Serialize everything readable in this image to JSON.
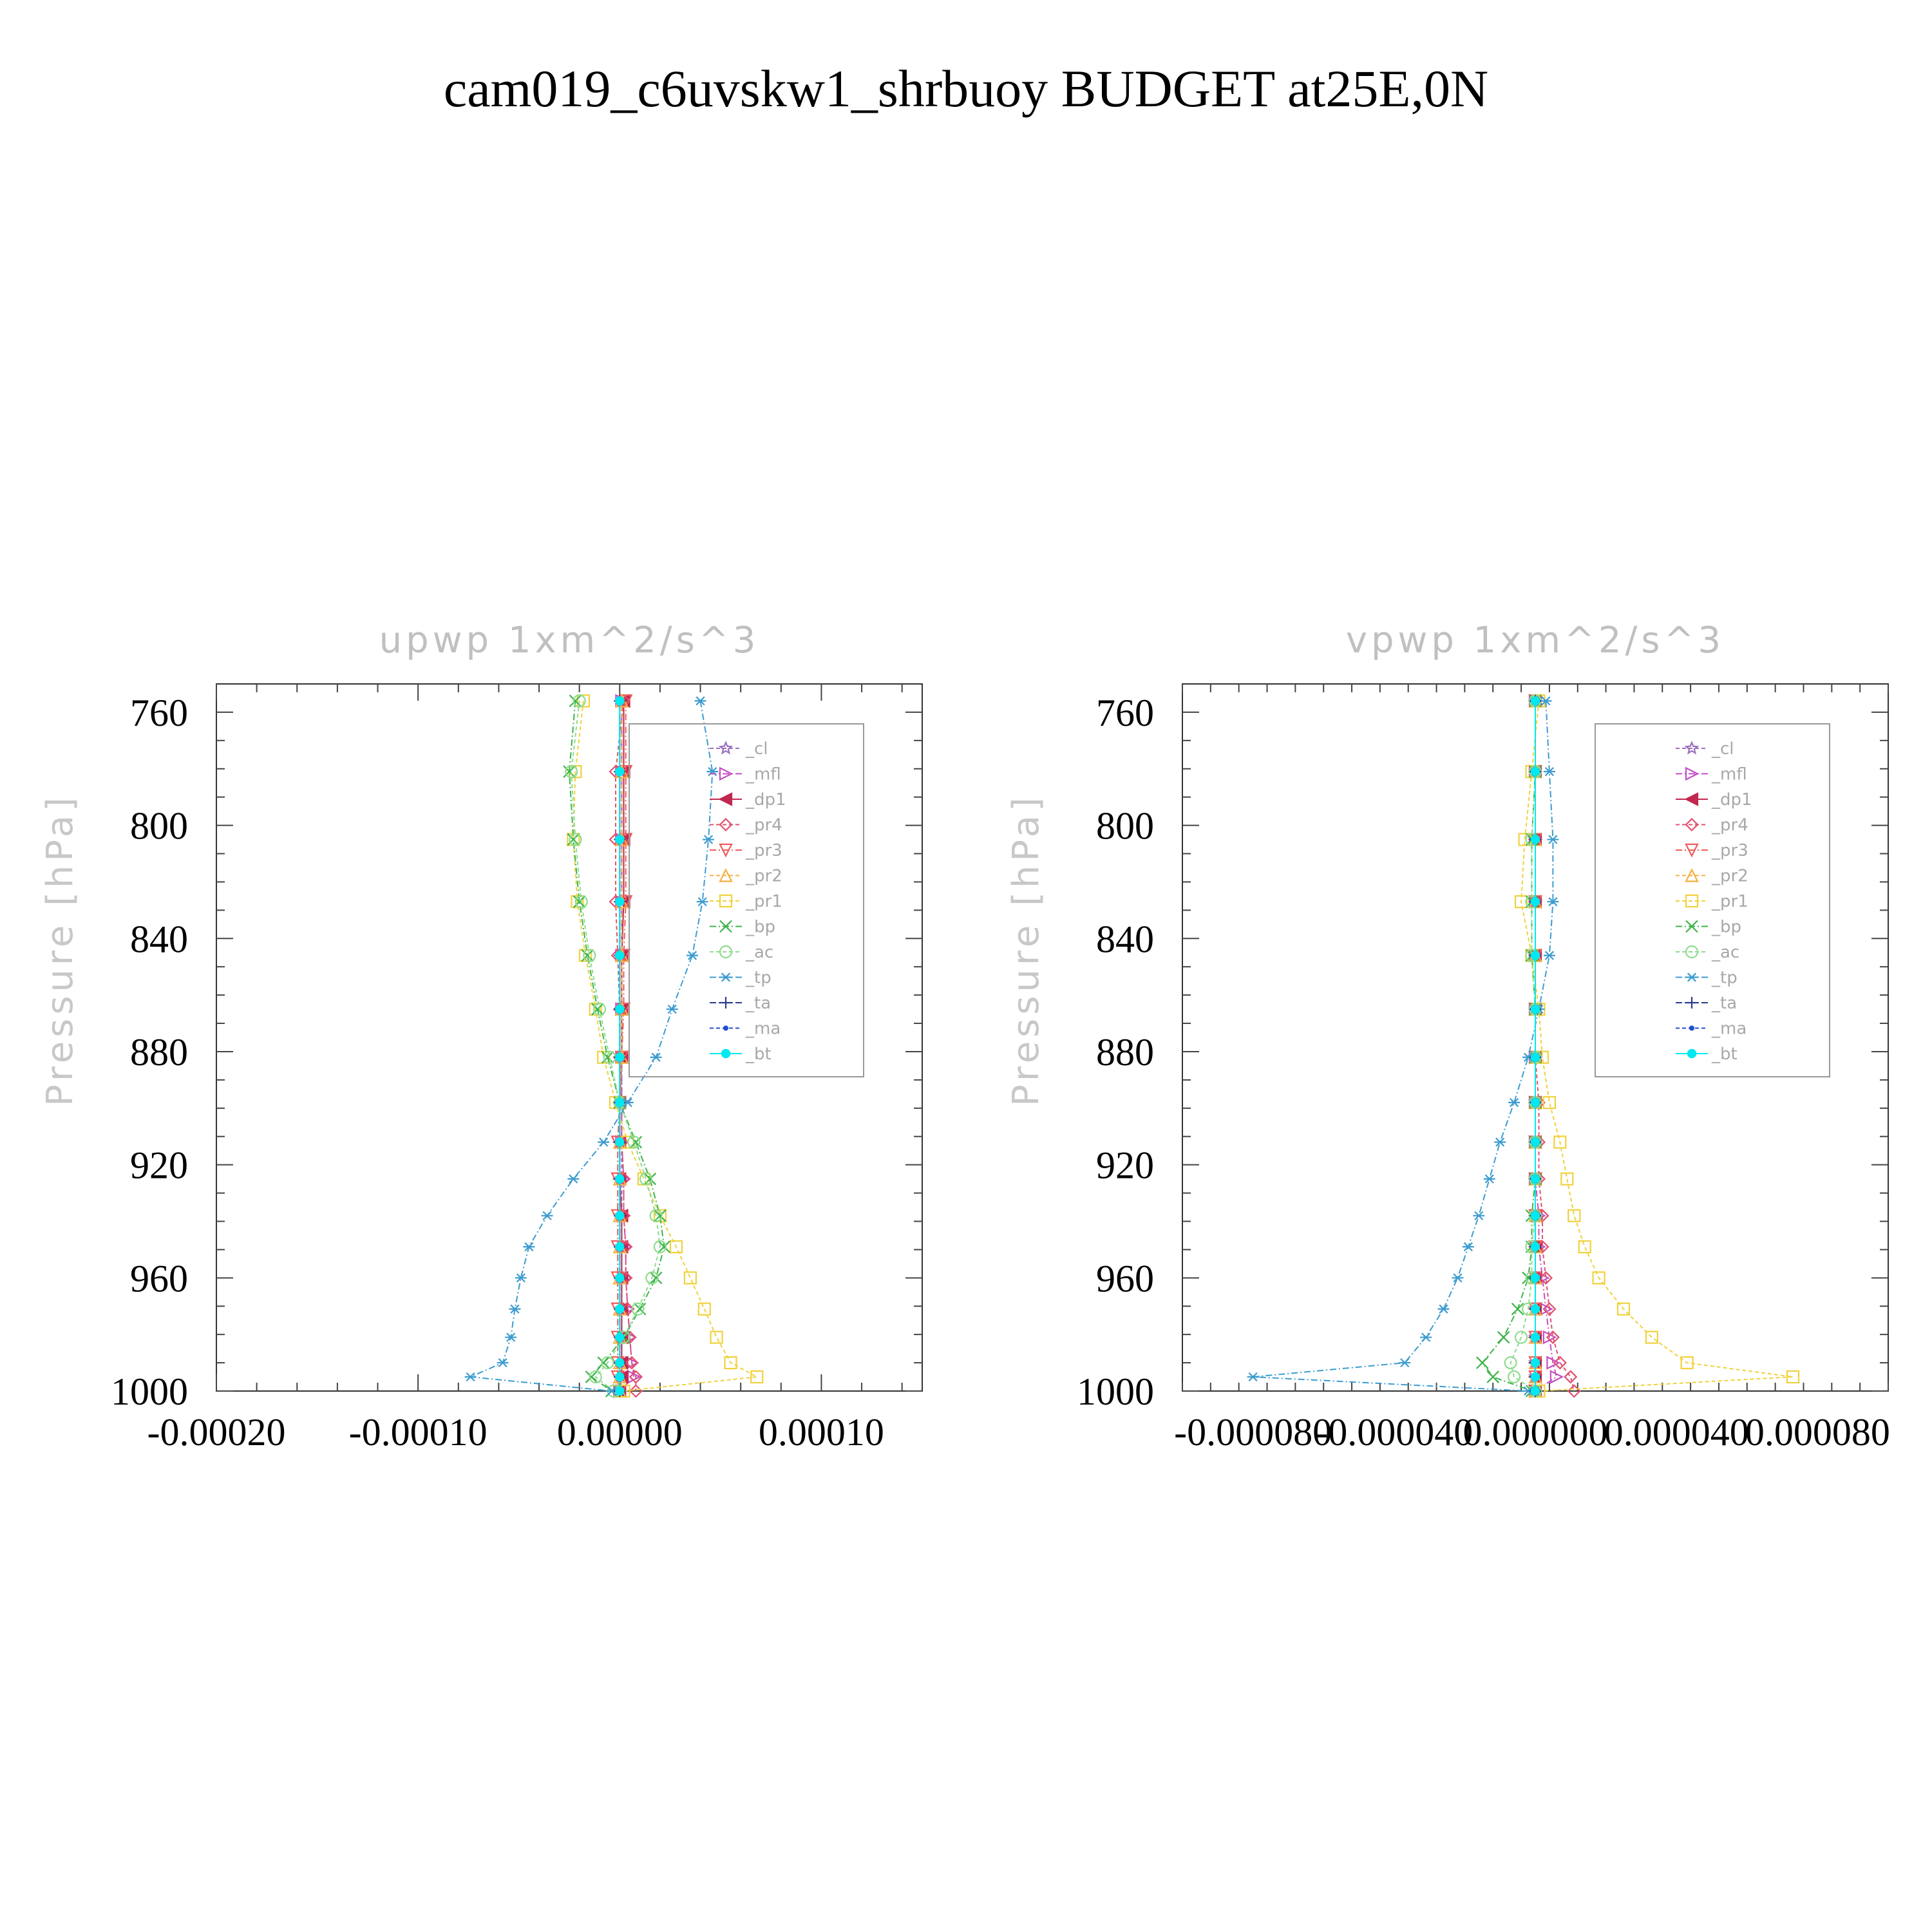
{
  "figure_title": "cam019_c6uvskw1_shrbuoy  BUDGET at25E,0N",
  "legend": {
    "entries": [
      {
        "label": "_cl",
        "color": "#9a6fc0",
        "marker": "star",
        "dash": "6 4"
      },
      {
        "label": "_mfl",
        "color": "#c44ec4",
        "marker": "tri-right",
        "dash": "10 4 2 4"
      },
      {
        "label": "_dp1",
        "color": "#c0284f",
        "marker": "tri-left",
        "dash": ""
      },
      {
        "label": "_pr4",
        "color": "#e0506e",
        "marker": "diamond",
        "dash": "6 4"
      },
      {
        "label": "_pr3",
        "color": "#f05a5a",
        "marker": "tri-down",
        "dash": "10 4 2 4"
      },
      {
        "label": "_pr2",
        "color": "#f5b040",
        "marker": "tri-up",
        "dash": "6 4"
      },
      {
        "label": "_pr1",
        "color": "#f0d23c",
        "marker": "square",
        "dash": "6 4"
      },
      {
        "label": "_bp",
        "color": "#3cb44a",
        "marker": "x",
        "dash": "10 4 2 4"
      },
      {
        "label": "_ac",
        "color": "#8fdc8f",
        "marker": "circle-open",
        "dash": "6 4"
      },
      {
        "label": "_tp",
        "color": "#3c9cd0",
        "marker": "asterisk",
        "dash": "10 4 2 4"
      },
      {
        "label": "_ta",
        "color": "#2a3a8a",
        "marker": "plus",
        "dash": "10 4 2 4"
      },
      {
        "label": "_ma",
        "color": "#2050d0",
        "marker": "dot",
        "dash": "6 4"
      },
      {
        "label": "_bt",
        "color": "#00e8f0",
        "marker": "circle",
        "dash": ""
      }
    ]
  },
  "chart_data": [
    {
      "type": "line",
      "title": "upwp    1xm^2/s^3",
      "ylabel": "Pressure  [hPa]",
      "xlabel": "",
      "xlim": [
        -0.0002,
        0.00015
      ],
      "ylim": [
        750,
        1000
      ],
      "y_inverted": true,
      "xticks": [
        -0.0002,
        -0.0001,
        0.0,
        0.0001
      ],
      "xtick_labels": [
        "-0.00020",
        "-0.00010",
        "0.00000",
        "0.00010"
      ],
      "yticks": [
        760,
        800,
        840,
        880,
        920,
        960,
        1000
      ],
      "ytick_labels": [
        "760",
        "800",
        "840",
        "880",
        "920",
        "960",
        "1000"
      ],
      "y": [
        756,
        781,
        805,
        827,
        846,
        865,
        882,
        898,
        912,
        925,
        938,
        949,
        960,
        971,
        981,
        990,
        995,
        1000
      ],
      "series": [
        {
          "name": "_cl",
          "x": [
            1e-06,
            1e-06,
            1e-06,
            1e-06,
            1e-06,
            1e-06,
            1e-06,
            1e-06,
            1e-06,
            1e-06,
            1e-06,
            1e-06,
            1e-06,
            1e-06,
            1e-06,
            1e-06,
            1e-06,
            0.0
          ]
        },
        {
          "name": "_mfl",
          "x": [
            1e-06,
            1e-06,
            1e-06,
            1e-06,
            1e-06,
            1e-06,
            1e-06,
            1e-06,
            1e-06,
            2e-06,
            2e-06,
            3e-06,
            3e-06,
            4e-06,
            5e-06,
            6e-06,
            7e-06,
            0.0
          ]
        },
        {
          "name": "_dp1",
          "x": [
            2e-06,
            2e-06,
            2e-06,
            2e-06,
            1e-06,
            1e-06,
            1e-06,
            0.0,
            0.0,
            0.0,
            1e-06,
            1e-06,
            1e-06,
            1e-06,
            1e-06,
            1e-06,
            1e-06,
            0.0
          ]
        },
        {
          "name": "_pr4",
          "x": [
            2e-06,
            -2e-06,
            -2e-06,
            -2e-06,
            -1e-06,
            0.0,
            0.0,
            1e-06,
            1e-06,
            2e-06,
            2e-06,
            3e-06,
            3e-06,
            4e-06,
            5e-06,
            6e-06,
            8e-06,
            8e-06
          ]
        },
        {
          "name": "_pr3",
          "x": [
            3e-06,
            3e-06,
            3e-06,
            3e-06,
            2e-06,
            2e-06,
            1e-06,
            0.0,
            -1e-06,
            -1e-06,
            -1e-06,
            -1e-06,
            -1e-06,
            -1e-06,
            -1e-06,
            -1e-06,
            -1e-06,
            0.0
          ]
        },
        {
          "name": "_pr2",
          "x": [
            1e-06,
            1e-06,
            1e-06,
            1e-06,
            1e-06,
            1e-06,
            1e-06,
            0.0,
            0.0,
            0.0,
            0.0,
            0.0,
            0.0,
            0.0,
            0.0,
            0.0,
            0.0,
            0.0
          ]
        },
        {
          "name": "_pr1",
          "x": [
            -1.8e-05,
            -2.2e-05,
            -2.3e-05,
            -2.1e-05,
            -1.7e-05,
            -1.2e-05,
            -8e-06,
            -2e-06,
            4e-06,
            1.2e-05,
            2e-05,
            2.8e-05,
            3.5e-05,
            4.2e-05,
            4.8e-05,
            5.5e-05,
            6.8e-05,
            2e-06
          ]
        },
        {
          "name": "_bp",
          "x": [
            -2.2e-05,
            -2.5e-05,
            -2.3e-05,
            -2e-05,
            -1.6e-05,
            -1.1e-05,
            -6e-06,
            0.0,
            8e-06,
            1.5e-05,
            2e-05,
            2.2e-05,
            1.8e-05,
            1e-05,
            2e-06,
            -8e-06,
            -1.4e-05,
            -4e-06
          ]
        },
        {
          "name": "_ac",
          "x": [
            -2e-05,
            -2.4e-05,
            -2.2e-05,
            -1.9e-05,
            -1.5e-05,
            -1e-05,
            -5e-06,
            0.0,
            7e-06,
            1.3e-05,
            1.8e-05,
            2e-05,
            1.6e-05,
            9e-06,
            2e-06,
            -6e-06,
            -1.2e-05,
            -3e-06
          ]
        },
        {
          "name": "_tp",
          "x": [
            4e-05,
            4.6e-05,
            4.4e-05,
            4.1e-05,
            3.6e-05,
            2.6e-05,
            1.8e-05,
            4e-06,
            -8e-06,
            -2.3e-05,
            -3.6e-05,
            -4.5e-05,
            -4.9e-05,
            -5.2e-05,
            -5.4e-05,
            -5.8e-05,
            -7.4e-05,
            -4e-06
          ]
        },
        {
          "name": "_ta",
          "x": [
            0.0,
            0.0,
            0.0,
            0.0,
            0.0,
            0.0,
            0.0,
            0.0,
            0.0,
            0.0,
            0.0,
            0.0,
            0.0,
            0.0,
            0.0,
            0.0,
            0.0,
            0.0
          ]
        },
        {
          "name": "_ma",
          "x": [
            0.0,
            0.0,
            0.0,
            0.0,
            0.0,
            0.0,
            0.0,
            0.0,
            0.0,
            0.0,
            0.0,
            0.0,
            0.0,
            0.0,
            0.0,
            0.0,
            0.0,
            0.0
          ]
        },
        {
          "name": "_bt",
          "x": [
            0.0,
            0.0,
            0.0,
            0.0,
            0.0,
            0.0,
            0.0,
            0.0,
            0.0,
            0.0,
            0.0,
            0.0,
            0.0,
            0.0,
            0.0,
            0.0,
            0.0,
            0.0
          ]
        }
      ]
    },
    {
      "type": "line",
      "title": "vpwp    1xm^2/s^3",
      "ylabel": "Pressure  [hPa]",
      "xlabel": "",
      "xlim": [
        -0.0001,
        0.0001
      ],
      "ylim": [
        750,
        1000
      ],
      "y_inverted": true,
      "xticks": [
        -8e-05,
        -4e-05,
        0.0,
        4e-05,
        8e-05
      ],
      "xtick_labels": [
        "-0.000080",
        "-0.000040",
        "0.000000",
        "0.000040",
        "0.000080"
      ],
      "yticks": [
        760,
        800,
        840,
        880,
        920,
        960,
        1000
      ],
      "ytick_labels": [
        "760",
        "800",
        "840",
        "880",
        "920",
        "960",
        "1000"
      ],
      "y": [
        756,
        781,
        805,
        827,
        846,
        865,
        882,
        898,
        912,
        925,
        938,
        949,
        960,
        971,
        981,
        990,
        995,
        1000
      ],
      "series": [
        {
          "name": "_cl",
          "x": [
            0.0,
            0.0,
            0.0,
            0.0,
            0.0,
            0.0,
            0.0,
            0.0,
            0.0,
            0.0,
            0.0,
            0.0,
            0.0,
            0.0,
            0.0,
            0.0,
            0.0,
            0.0
          ]
        },
        {
          "name": "_mfl",
          "x": [
            0.0,
            0.0,
            0.0,
            0.0,
            0.0,
            0.0,
            0.0,
            0.0,
            0.0,
            0.0,
            1e-06,
            1e-06,
            2e-06,
            3e-06,
            4e-06,
            5e-06,
            6e-06,
            0.0
          ]
        },
        {
          "name": "_dp1",
          "x": [
            0.0,
            0.0,
            0.0,
            0.0,
            0.0,
            0.0,
            0.0,
            0.0,
            0.0,
            0.0,
            0.0,
            0.0,
            0.0,
            0.0,
            0.0,
            0.0,
            0.0,
            0.0
          ]
        },
        {
          "name": "_pr4",
          "x": [
            0.0,
            0.0,
            0.0,
            0.0,
            0.0,
            0.0,
            0.0,
            1e-06,
            1e-06,
            1e-06,
            2e-06,
            2e-06,
            3e-06,
            4e-06,
            5e-06,
            7e-06,
            1e-05,
            1.1e-05
          ]
        },
        {
          "name": "_pr3",
          "x": [
            0.0,
            0.0,
            0.0,
            0.0,
            0.0,
            0.0,
            0.0,
            0.0,
            0.0,
            0.0,
            0.0,
            0.0,
            0.0,
            0.0,
            0.0,
            0.0,
            0.0,
            0.0
          ]
        },
        {
          "name": "_pr2",
          "x": [
            0.0,
            0.0,
            0.0,
            0.0,
            0.0,
            0.0,
            0.0,
            0.0,
            0.0,
            0.0,
            0.0,
            0.0,
            0.0,
            0.0,
            0.0,
            0.0,
            0.0,
            0.0
          ]
        },
        {
          "name": "_pr1",
          "x": [
            1e-06,
            -1e-06,
            -3e-06,
            -4e-06,
            -1e-06,
            1e-06,
            2e-06,
            4e-06,
            7e-06,
            9e-06,
            1.1e-05,
            1.4e-05,
            1.8e-05,
            2.5e-05,
            3.3e-05,
            4.3e-05,
            7.3e-05,
            1e-06
          ]
        },
        {
          "name": "_bp",
          "x": [
            0.0,
            0.0,
            -1e-06,
            -1e-06,
            -1e-06,
            0.0,
            0.0,
            0.0,
            0.0,
            0.0,
            -1e-06,
            -1e-06,
            -2e-06,
            -5e-06,
            -9e-06,
            -1.5e-05,
            -1.2e-05,
            -1e-06
          ]
        },
        {
          "name": "_ac",
          "x": [
            0.0,
            0.0,
            -1e-06,
            -1e-06,
            -1e-06,
            0.0,
            0.0,
            0.0,
            0.0,
            0.0,
            0.0,
            -1e-06,
            -1e-06,
            -2e-06,
            -4e-06,
            -7e-06,
            -6e-06,
            0.0
          ]
        },
        {
          "name": "_tp",
          "x": [
            3e-06,
            4e-06,
            5e-06,
            5e-06,
            4e-06,
            1e-06,
            -2e-06,
            -6e-06,
            -1e-05,
            -1.3e-05,
            -1.6e-05,
            -1.9e-05,
            -2.2e-05,
            -2.6e-05,
            -3.1e-05,
            -3.7e-05,
            -8e-05,
            -2e-06
          ]
        },
        {
          "name": "_ta",
          "x": [
            0.0,
            0.0,
            0.0,
            0.0,
            0.0,
            0.0,
            0.0,
            0.0,
            0.0,
            0.0,
            0.0,
            0.0,
            0.0,
            0.0,
            0.0,
            0.0,
            0.0,
            0.0
          ]
        },
        {
          "name": "_ma",
          "x": [
            0.0,
            0.0,
            0.0,
            0.0,
            0.0,
            0.0,
            0.0,
            0.0,
            0.0,
            0.0,
            0.0,
            0.0,
            0.0,
            0.0,
            0.0,
            0.0,
            0.0,
            0.0
          ]
        },
        {
          "name": "_bt",
          "x": [
            0.0,
            0.0,
            0.0,
            0.0,
            0.0,
            0.0,
            0.0,
            0.0,
            0.0,
            0.0,
            0.0,
            0.0,
            0.0,
            0.0,
            0.0,
            0.0,
            0.0,
            0.0
          ]
        }
      ]
    }
  ]
}
